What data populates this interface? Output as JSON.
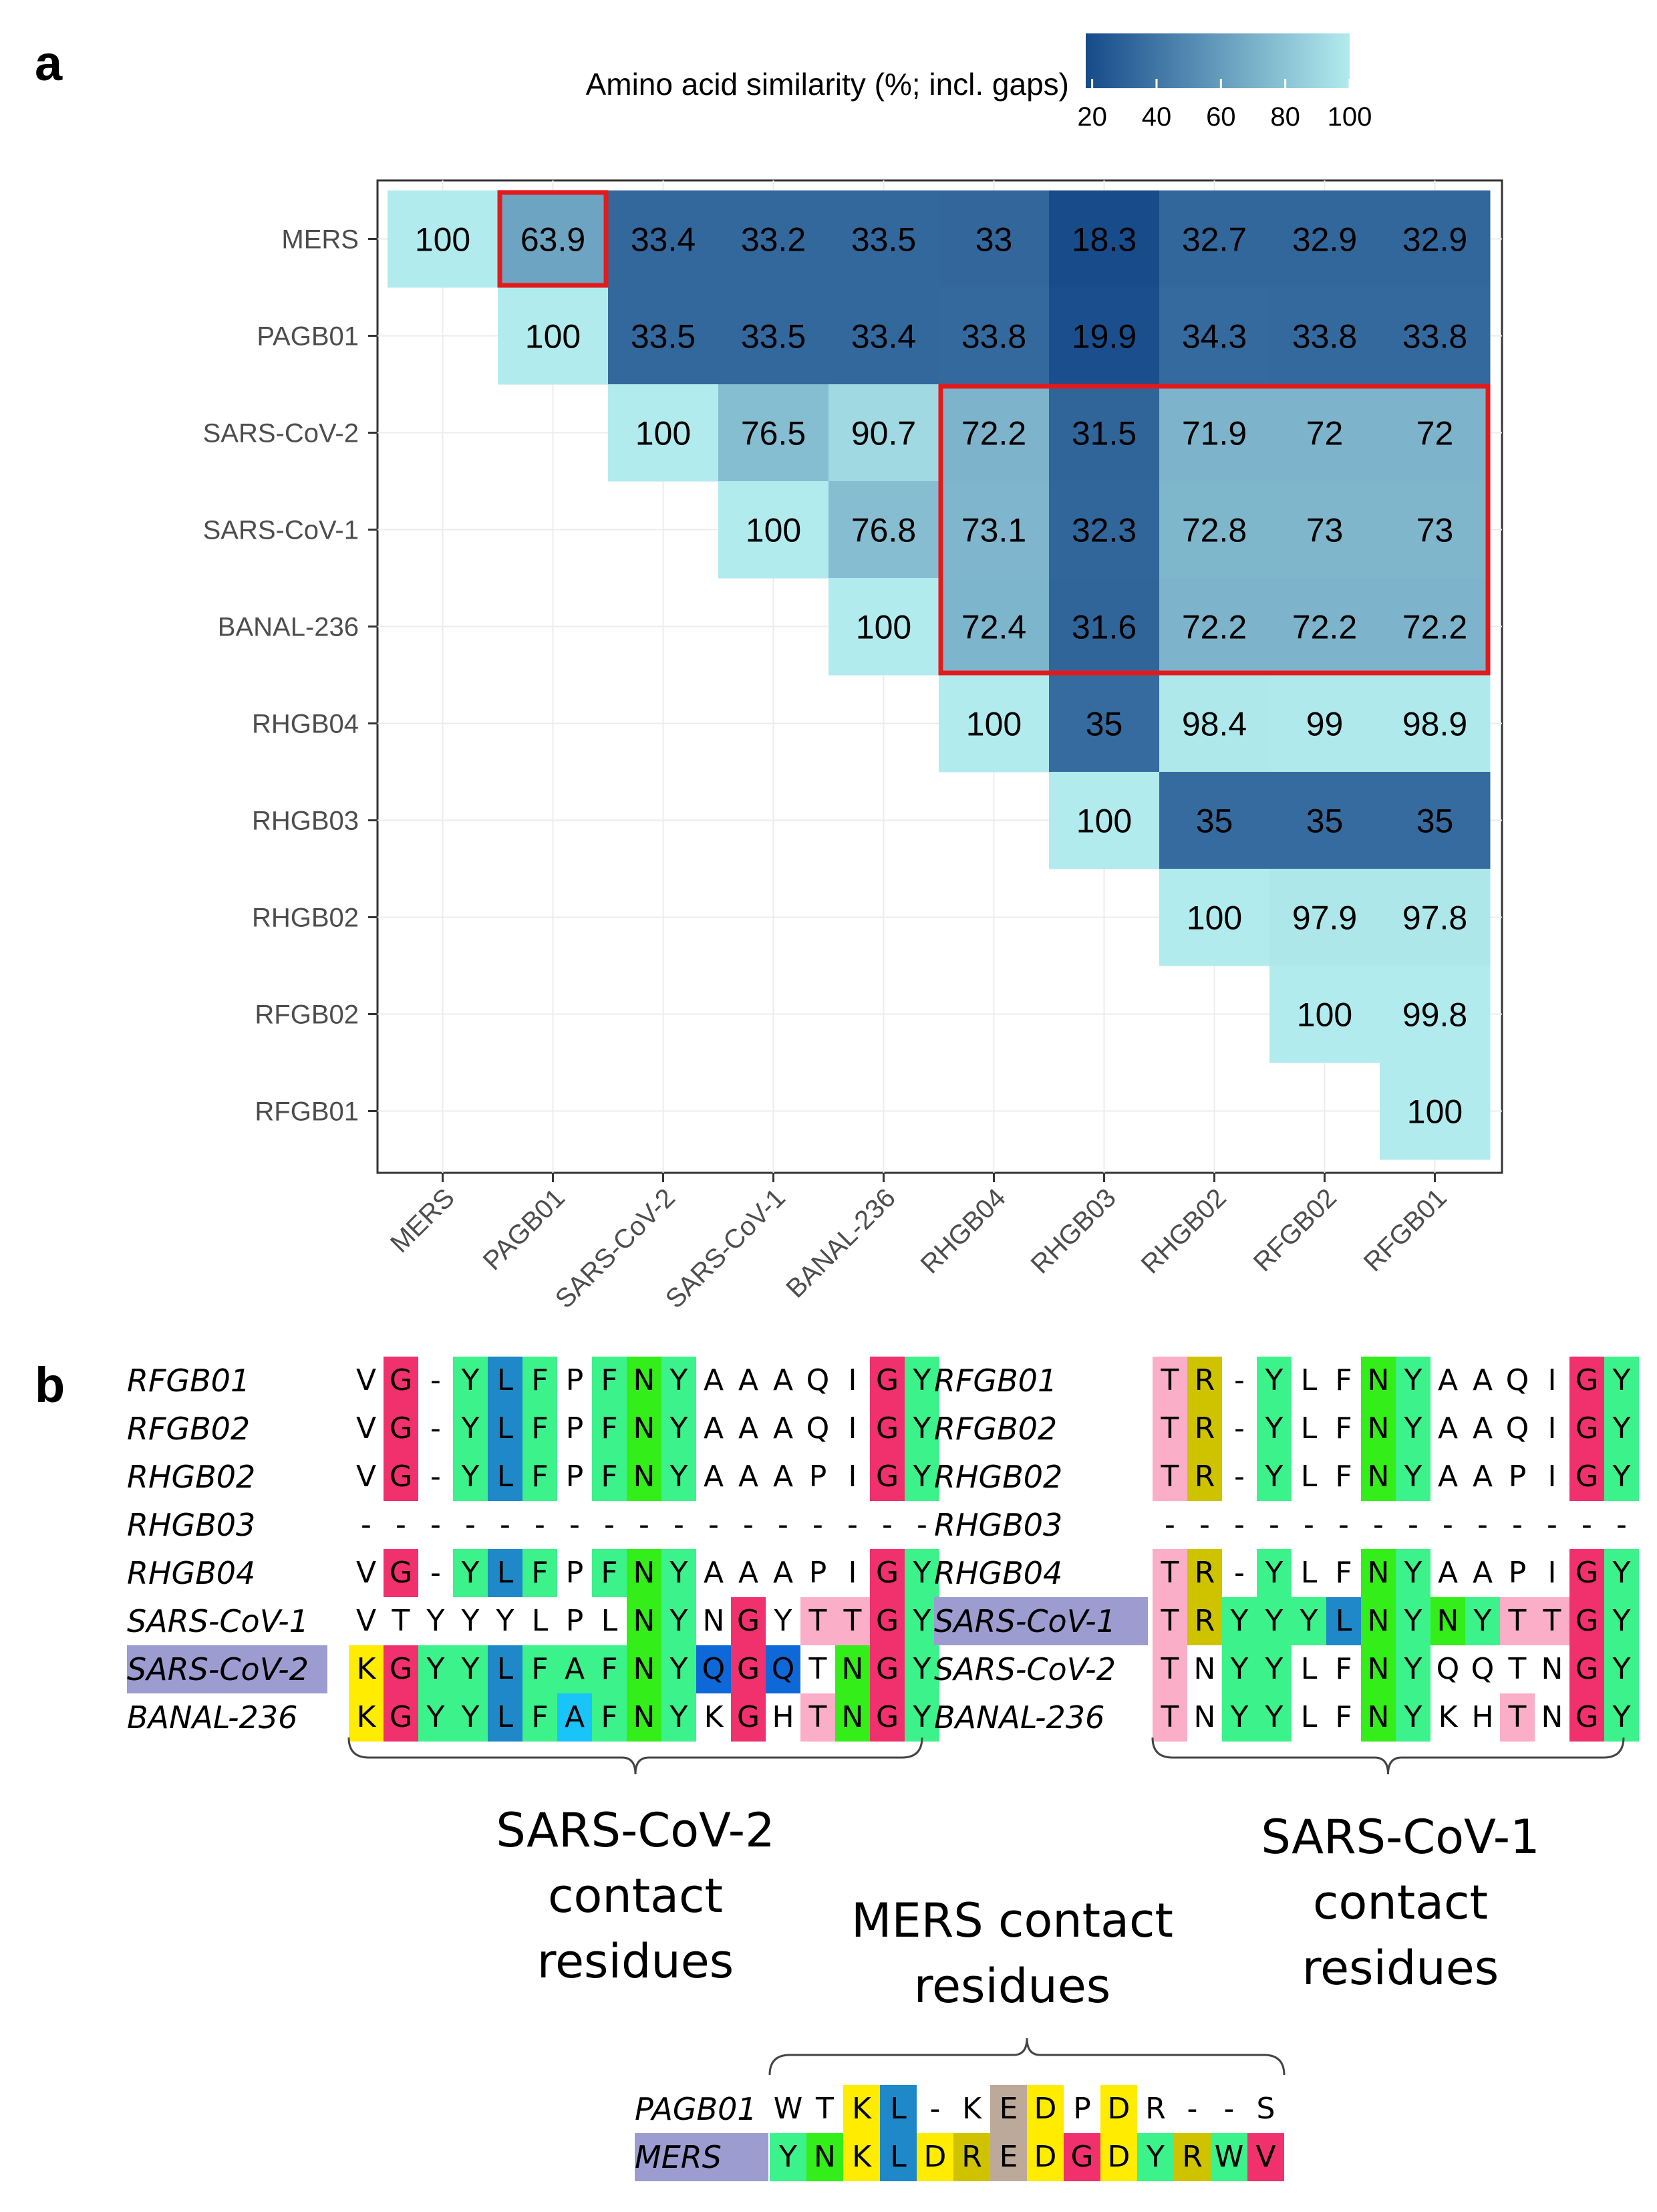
{
  "panel_a_label": "a",
  "panel_b_label": "b",
  "colors": {
    "low": "#164a8a",
    "high": "#b2ebed",
    "highlight_box": "#e31a1c",
    "name_highlight": "#9c9cd0",
    "G": "#f1306e",
    "L": "#1f88c8",
    "F": "#3cf28a",
    "Y": "#3cf28a",
    "N": "#33ee18",
    "K": "#ffec00",
    "R": "#cfc300",
    "T": "#fbaec8",
    "Q": "#0f68d8",
    "A_special": "#18c4f8",
    "E": "#bda99a",
    "D": "#ffec00",
    "W": "#3cf28a",
    "V": "#f1306e"
  },
  "chart_data": {
    "type": "heatmap",
    "legend_title": "Amino acid similarity (%; incl. gaps)",
    "legend_ticks": [
      20,
      40,
      60,
      80,
      100
    ],
    "value_range": [
      18,
      100
    ],
    "labels": [
      "MERS",
      "PAGB01",
      "SARS-CoV-2",
      "SARS-CoV-1",
      "BANAL-236",
      "RHGB04",
      "RHGB03",
      "RHGB02",
      "RFGB02",
      "RFGB01"
    ],
    "cells": [
      [
        100,
        63.9,
        33.4,
        33.2,
        33.5,
        33,
        18.3,
        32.7,
        32.9,
        32.9
      ],
      [
        null,
        100,
        33.5,
        33.5,
        33.4,
        33.8,
        19.9,
        34.3,
        33.8,
        33.8
      ],
      [
        null,
        null,
        100,
        76.5,
        90.7,
        72.2,
        31.5,
        71.9,
        72,
        72
      ],
      [
        null,
        null,
        null,
        100,
        76.8,
        73.1,
        32.3,
        72.8,
        73,
        73
      ],
      [
        null,
        null,
        null,
        null,
        100,
        72.4,
        31.6,
        72.2,
        72.2,
        72.2
      ],
      [
        null,
        null,
        null,
        null,
        null,
        100,
        35,
        98.4,
        99,
        98.9
      ],
      [
        null,
        null,
        null,
        null,
        null,
        null,
        100,
        35,
        35,
        35
      ],
      [
        null,
        null,
        null,
        null,
        null,
        null,
        null,
        100,
        97.9,
        97.8
      ],
      [
        null,
        null,
        null,
        null,
        null,
        null,
        null,
        null,
        100,
        99.8
      ],
      [
        null,
        null,
        null,
        null,
        null,
        null,
        null,
        null,
        null,
        100
      ]
    ],
    "highlight_boxes": [
      {
        "rows": [
          0,
          0
        ],
        "cols": [
          1,
          1
        ]
      },
      {
        "rows": [
          2,
          4
        ],
        "cols": [
          5,
          9
        ]
      }
    ]
  },
  "alignments": {
    "left": {
      "rows": [
        {
          "name": "RFGB01",
          "seq": "VG-YLFPFNYAAAQIGY",
          "colors": [
            null,
            "G",
            null,
            "F",
            "L",
            "F",
            null,
            "F",
            "N",
            "F",
            null,
            null,
            null,
            null,
            null,
            "G",
            "F"
          ]
        },
        {
          "name": "RFGB02",
          "seq": "VG-YLFPFNYAAAQIGY",
          "colors": [
            null,
            "G",
            null,
            "F",
            "L",
            "F",
            null,
            "F",
            "N",
            "F",
            null,
            null,
            null,
            null,
            null,
            "G",
            "F"
          ]
        },
        {
          "name": "RHGB02",
          "seq": "VG-YLFPFNYAAAPIGY",
          "colors": [
            null,
            "G",
            null,
            "F",
            "L",
            "F",
            null,
            "F",
            "N",
            "F",
            null,
            null,
            null,
            null,
            null,
            "G",
            "F"
          ]
        },
        {
          "name": "RHGB03",
          "seq": "-----------------",
          "colors": []
        },
        {
          "name": "RHGB04",
          "seq": "VG-YLFPFNYAAAPIGY",
          "colors": [
            null,
            "G",
            null,
            "F",
            "L",
            "F",
            null,
            "F",
            "N",
            "F",
            null,
            null,
            null,
            null,
            null,
            "G",
            "F"
          ]
        },
        {
          "name": "SARS-CoV-1",
          "seq": "VTYYYLPLNYNGYTTGY",
          "colors": [
            null,
            null,
            null,
            null,
            null,
            null,
            null,
            null,
            "N",
            "F",
            null,
            "G",
            null,
            "T",
            "T",
            "G",
            "F"
          ]
        },
        {
          "name": "SARS-CoV-2",
          "seq": "KGYYLFAFNYQGQTNGY",
          "highlight": true,
          "colors": [
            "K",
            "G",
            "F",
            "F",
            "L",
            "F",
            "F",
            "F",
            "N",
            "F",
            "Q",
            "G",
            "Q",
            null,
            "N",
            "G",
            "F"
          ]
        },
        {
          "name": "BANAL-236",
          "seq": "KGYYLFAFNYKGHTNGY",
          "colors": [
            "K",
            "G",
            "F",
            "F",
            "L",
            "F",
            "A_special",
            "F",
            "N",
            "F",
            null,
            "G",
            null,
            "T",
            "N",
            "G",
            "F"
          ]
        }
      ]
    },
    "right": {
      "rows": [
        {
          "name": "RFGB01",
          "seq": "TR-YLFNYAAQIGY",
          "colors": [
            "T",
            "R",
            null,
            "F",
            null,
            null,
            "N",
            "F",
            null,
            null,
            null,
            null,
            "G",
            "F"
          ]
        },
        {
          "name": "RFGB02",
          "seq": "TR-YLFNYAAQIGY",
          "colors": [
            "T",
            "R",
            null,
            "F",
            null,
            null,
            "N",
            "F",
            null,
            null,
            null,
            null,
            "G",
            "F"
          ]
        },
        {
          "name": "RHGB02",
          "seq": "TR-YLFNYAAPIGY",
          "colors": [
            "T",
            "R",
            null,
            "F",
            null,
            null,
            "N",
            "F",
            null,
            null,
            null,
            null,
            "G",
            "F"
          ]
        },
        {
          "name": "RHGB03",
          "seq": "--------------",
          "colors": []
        },
        {
          "name": "RHGB04",
          "seq": "TR-YLFNYAAPIGY",
          "colors": [
            "T",
            "R",
            null,
            "F",
            null,
            null,
            "N",
            "F",
            null,
            null,
            null,
            null,
            "G",
            "F"
          ]
        },
        {
          "name": "SARS-CoV-1",
          "seq": "TRYYYLNYNYTTGY",
          "highlight": true,
          "colors": [
            "T",
            "R",
            "F",
            "F",
            "F",
            "L",
            "N",
            "F",
            "N",
            "F",
            "T",
            "T",
            "G",
            "F"
          ]
        },
        {
          "name": "SARS-CoV-2",
          "seq": "TNYYLFNYQQTNGY",
          "colors": [
            "T",
            null,
            "F",
            "F",
            null,
            null,
            "N",
            "F",
            null,
            null,
            null,
            null,
            "G",
            "F"
          ]
        },
        {
          "name": "BANAL-236",
          "seq": "TNYYLFNYKHTNGY",
          "colors": [
            "T",
            null,
            "F",
            "F",
            null,
            null,
            "N",
            "F",
            null,
            null,
            "T",
            null,
            "G",
            "F"
          ]
        }
      ]
    },
    "bottom": {
      "rows": [
        {
          "name": "PAGB01",
          "seq": "WTKL-KEDPDR--S",
          "colors": [
            null,
            null,
            "K",
            "L",
            null,
            null,
            "E",
            "D",
            null,
            "D",
            null,
            null,
            null,
            null
          ]
        },
        {
          "name": "MERS",
          "seq": "YNKLDREDGDYRWV",
          "highlight": true,
          "colors": [
            "F",
            "N",
            "K",
            "L",
            "K",
            "R",
            "E",
            "D",
            "G",
            "D",
            "F",
            "R",
            "W",
            "V"
          ]
        }
      ]
    },
    "labels": {
      "sars2": [
        "SARS-CoV-2",
        "contact",
        "residues"
      ],
      "sars1": [
        "SARS-CoV-1",
        "contact",
        "residues"
      ],
      "mers": [
        "MERS contact",
        "residues"
      ]
    }
  }
}
